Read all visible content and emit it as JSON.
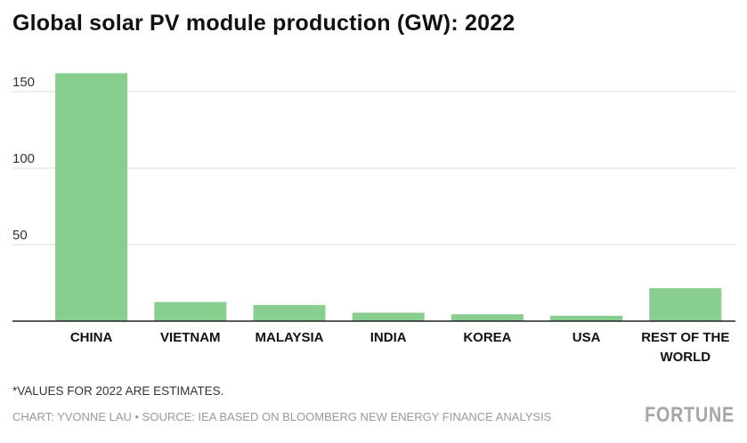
{
  "header": {
    "title": "Global solar PV module production (GW): 2022"
  },
  "chart_data": {
    "type": "bar",
    "title": "Global solar PV module production (GW): 2022",
    "xlabel": "",
    "ylabel": "",
    "ylim": [
      0,
      170
    ],
    "yticks": [
      50,
      100,
      150
    ],
    "grid": true,
    "categories": [
      "CHINA",
      "VIETNAM",
      "MALAYSIA",
      "INDIA",
      "KOREA",
      "USA",
      "REST OF THE WORLD"
    ],
    "category_lines": [
      [
        "CHINA"
      ],
      [
        "VIETNAM"
      ],
      [
        "MALAYSIA"
      ],
      [
        "INDIA"
      ],
      [
        "KOREA"
      ],
      [
        "USA"
      ],
      [
        "REST OF THE",
        "WORLD"
      ]
    ],
    "values": [
      162,
      12.5,
      10.5,
      5.5,
      4.5,
      3.5,
      21.5
    ],
    "bar_color": "#88cf8f"
  },
  "footer": {
    "note": "*VALUES FOR 2022 ARE ESTIMATES.",
    "credit": "CHART: YVONNE LAU • SOURCE: IEA BASED ON BLOOMBERG NEW ENERGY FINANCE ANALYSIS",
    "logo": "FORTUNE"
  },
  "colors": {
    "grid": "#dddddd",
    "axis": "#222222",
    "text": "#111111"
  }
}
